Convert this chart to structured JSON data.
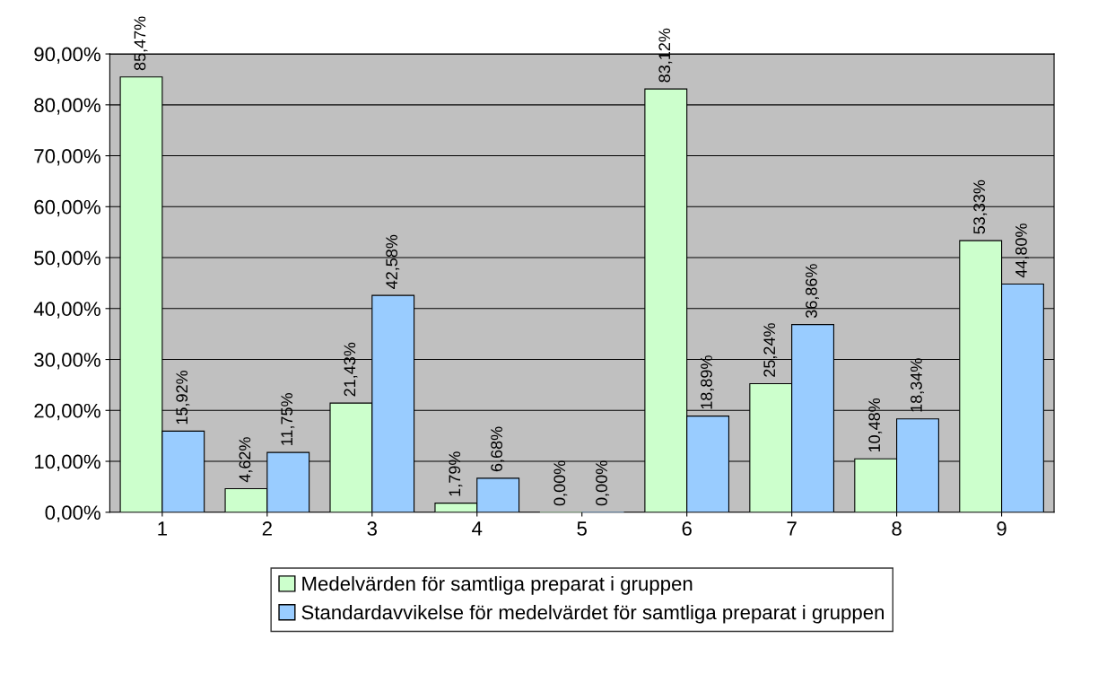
{
  "chart_data": {
    "type": "bar",
    "categories": [
      "1",
      "2",
      "3",
      "4",
      "5",
      "6",
      "7",
      "8",
      "9"
    ],
    "series": [
      {
        "name": "Medelvärden för samtliga preparat i gruppen",
        "color": "#ccffcc",
        "values": [
          85.47,
          4.62,
          21.43,
          1.79,
          0.0,
          83.12,
          25.24,
          10.48,
          53.33
        ],
        "value_labels": [
          "85,47%",
          "4,62%",
          "21,43%",
          "1,79%",
          "0,00%",
          "83,12%",
          "25,24%",
          "10,48%",
          "53,33%"
        ]
      },
      {
        "name": "Standardavvikelse för medelvärdet för samtliga preparat i gruppen",
        "color": "#99ccff",
        "values": [
          15.92,
          11.75,
          42.58,
          6.68,
          0.0,
          18.89,
          36.86,
          18.34,
          44.8
        ],
        "value_labels": [
          "15,92%",
          "11,75%",
          "42,58%",
          "6,68%",
          "0,00%",
          "18,89%",
          "36,86%",
          "18,34%",
          "44,80%"
        ]
      }
    ],
    "ylim": [
      0,
      90
    ],
    "yticks": [
      {
        "value": 0,
        "label": "0,00%"
      },
      {
        "value": 10,
        "label": "10,00%"
      },
      {
        "value": 20,
        "label": "20,00%"
      },
      {
        "value": 30,
        "label": "30,00%"
      },
      {
        "value": 40,
        "label": "40,00%"
      },
      {
        "value": 50,
        "label": "50,00%"
      },
      {
        "value": 60,
        "label": "60,00%"
      },
      {
        "value": 70,
        "label": "70,00%"
      },
      {
        "value": 80,
        "label": "80,00%"
      },
      {
        "value": 90,
        "label": "90,00%"
      }
    ],
    "grid": "y",
    "legend": "bottom"
  }
}
